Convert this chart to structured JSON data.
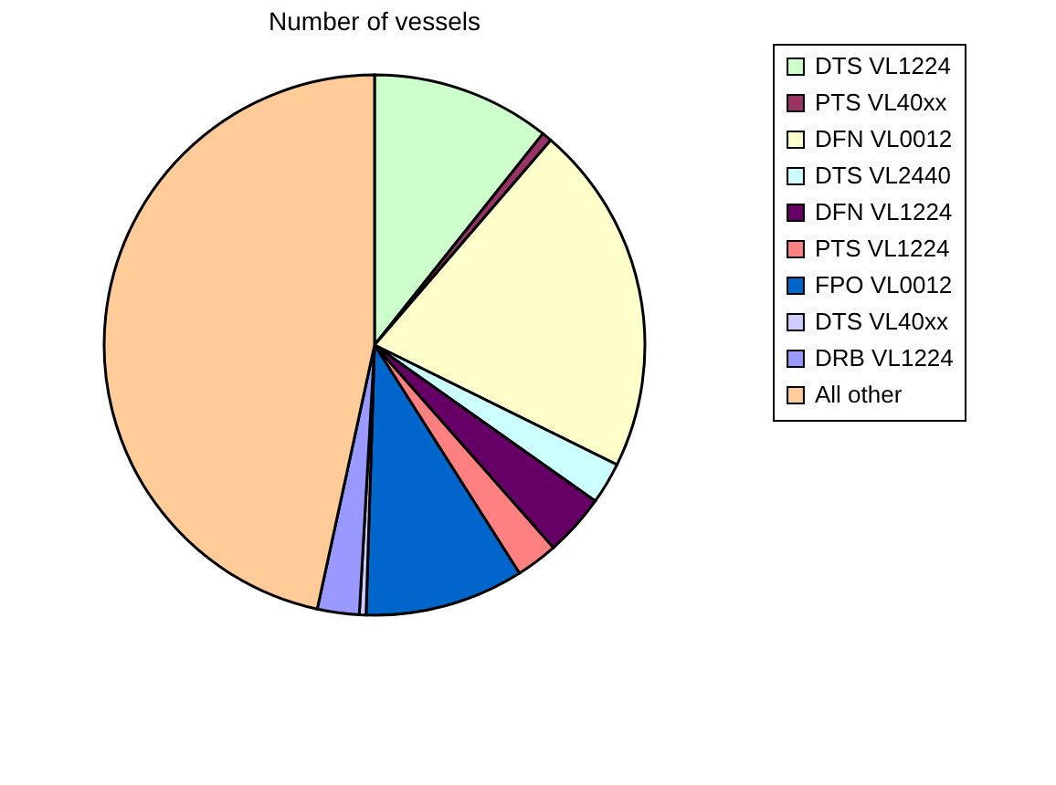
{
  "chart_data": {
    "type": "pie",
    "title": "Number of vessels",
    "categories": [
      "DTS VL1224",
      "PTS VL40xx",
      "DFN VL0012",
      "DTS VL2440",
      "DFN VL1224",
      "PTS VL1224",
      "FPO VL0012",
      "DTS VL40xx",
      "DRB VL1224",
      "All other"
    ],
    "values": [
      10.7,
      0.6,
      21.0,
      2.5,
      3.7,
      2.5,
      9.5,
      0.4,
      2.5,
      46.6
    ],
    "colors": [
      "#ccffcc",
      "#993366",
      "#ffffcc",
      "#ccffff",
      "#660066",
      "#ff8080",
      "#0066cc",
      "#ccccff",
      "#9999ff",
      "#ffcc99"
    ],
    "legend": "right"
  }
}
